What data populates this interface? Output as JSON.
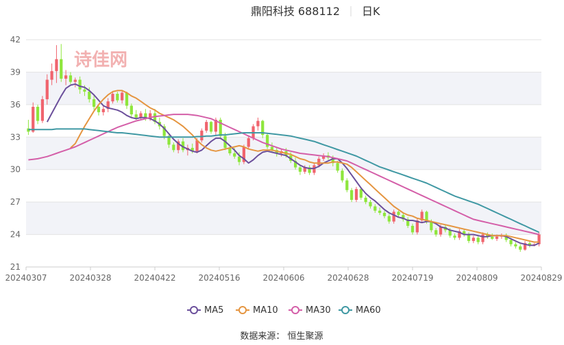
{
  "header": {
    "stock_name": "鼎阳科技 688112",
    "period": "日K"
  },
  "watermark": "诗佳网",
  "source": "数据来源： 恒生聚源",
  "colors": {
    "up": "#f0646e",
    "down": "#8ee63c",
    "ma5": "#6b4f9b",
    "ma10": "#e59540",
    "ma30": "#d45ea8",
    "ma60": "#3f98a3",
    "band": "#f2f3f8",
    "grid": "#e3e3e3",
    "axis_text": "#666666",
    "title_text": "#333333",
    "watermark": "#f2b1b1"
  },
  "chart_data": {
    "type": "candlestick",
    "title": "鼎阳科技 688112 日K",
    "y_ticks": [
      21,
      24,
      27,
      30,
      33,
      36,
      39,
      42
    ],
    "ylim": [
      21,
      42
    ],
    "x_tick_labels": [
      "20240307",
      "20240328",
      "20240422",
      "20240516",
      "20240606",
      "20240628",
      "20240719",
      "20240809",
      "20240829"
    ],
    "legend": [
      "MA5",
      "MA10",
      "MA30",
      "MA60"
    ],
    "legend_position": "bottom-center",
    "grid": true,
    "candles": [
      [
        33.8,
        34.6,
        33.2,
        33.5
      ],
      [
        33.5,
        36.2,
        33.4,
        35.8
      ],
      [
        35.8,
        36.0,
        34.2,
        34.5
      ],
      [
        34.5,
        36.8,
        34.3,
        36.5
      ],
      [
        36.5,
        38.8,
        36.0,
        38.3
      ],
      [
        38.3,
        39.8,
        37.8,
        39.1
      ],
      [
        39.1,
        41.5,
        38.0,
        40.2
      ],
      [
        40.2,
        41.6,
        38.1,
        38.4
      ],
      [
        38.4,
        39.2,
        37.8,
        38.7
      ],
      [
        38.7,
        39.0,
        37.9,
        38.1
      ],
      [
        38.1,
        38.5,
        37.6,
        38.3
      ],
      [
        38.3,
        38.6,
        37.0,
        37.4
      ],
      [
        37.4,
        37.8,
        36.8,
        37.2
      ],
      [
        37.2,
        37.6,
        36.2,
        36.5
      ],
      [
        36.5,
        36.9,
        35.5,
        35.8
      ],
      [
        35.8,
        36.0,
        35.0,
        35.3
      ],
      [
        35.3,
        35.9,
        35.0,
        35.6
      ],
      [
        35.6,
        36.6,
        35.3,
        36.3
      ],
      [
        36.3,
        37.2,
        36.1,
        37.0
      ],
      [
        37.0,
        37.2,
        36.2,
        36.4
      ],
      [
        36.4,
        37.3,
        36.1,
        37.1
      ],
      [
        37.1,
        37.2,
        35.6,
        35.9
      ],
      [
        35.9,
        36.1,
        34.8,
        35.1
      ],
      [
        35.1,
        35.5,
        34.6,
        34.8
      ],
      [
        34.8,
        35.4,
        34.6,
        35.2
      ],
      [
        35.2,
        35.6,
        34.5,
        34.7
      ],
      [
        34.7,
        35.5,
        34.5,
        35.2
      ],
      [
        35.2,
        35.6,
        34.2,
        34.4
      ],
      [
        34.4,
        34.8,
        33.7,
        34.0
      ],
      [
        34.0,
        34.2,
        32.8,
        33.1
      ],
      [
        33.1,
        33.4,
        32.0,
        32.3
      ],
      [
        32.3,
        32.5,
        31.6,
        31.8
      ],
      [
        31.8,
        32.8,
        31.5,
        32.6
      ],
      [
        32.6,
        32.9,
        31.6,
        31.8
      ],
      [
        31.8,
        32.3,
        31.3,
        32.0
      ],
      [
        32.0,
        32.4,
        31.5,
        31.7
      ],
      [
        31.7,
        32.9,
        31.5,
        32.7
      ],
      [
        32.7,
        33.8,
        32.5,
        33.6
      ],
      [
        33.6,
        34.6,
        33.4,
        34.4
      ],
      [
        34.4,
        34.5,
        33.3,
        33.5
      ],
      [
        33.5,
        34.8,
        33.2,
        34.6
      ],
      [
        34.6,
        34.8,
        32.8,
        33.1
      ],
      [
        33.1,
        33.4,
        31.8,
        32.0
      ],
      [
        32.0,
        32.2,
        31.3,
        31.5
      ],
      [
        31.5,
        32.0,
        31.0,
        31.2
      ],
      [
        31.2,
        31.6,
        30.4,
        30.7
      ],
      [
        30.7,
        32.3,
        30.5,
        32.1
      ],
      [
        32.1,
        33.1,
        31.9,
        32.9
      ],
      [
        32.9,
        34.2,
        32.7,
        34.0
      ],
      [
        34.0,
        34.8,
        33.6,
        34.5
      ],
      [
        34.5,
        34.6,
        32.9,
        33.2
      ],
      [
        33.2,
        33.4,
        31.9,
        32.1
      ],
      [
        32.1,
        32.5,
        31.6,
        31.8
      ],
      [
        31.8,
        32.1,
        31.2,
        31.5
      ],
      [
        31.5,
        31.9,
        31.2,
        31.7
      ],
      [
        31.7,
        32.0,
        31.1,
        31.3
      ],
      [
        31.3,
        31.6,
        30.6,
        30.8
      ],
      [
        30.8,
        31.1,
        30.0,
        30.2
      ],
      [
        30.2,
        30.4,
        29.5,
        29.8
      ],
      [
        29.8,
        30.4,
        29.6,
        30.2
      ],
      [
        30.2,
        30.4,
        29.5,
        29.7
      ],
      [
        29.7,
        30.6,
        29.5,
        30.4
      ],
      [
        30.4,
        31.2,
        30.2,
        31.0
      ],
      [
        31.0,
        31.5,
        30.8,
        31.3
      ],
      [
        31.3,
        31.6,
        30.9,
        31.1
      ],
      [
        31.1,
        31.3,
        30.3,
        30.6
      ],
      [
        30.6,
        30.8,
        29.7,
        29.9
      ],
      [
        29.9,
        30.1,
        28.8,
        29.0
      ],
      [
        29.0,
        29.2,
        27.9,
        28.1
      ],
      [
        28.1,
        28.3,
        27.0,
        27.2
      ],
      [
        27.2,
        28.4,
        27.0,
        28.2
      ],
      [
        28.2,
        28.4,
        27.2,
        27.4
      ],
      [
        27.4,
        27.6,
        26.8,
        27.0
      ],
      [
        27.0,
        27.2,
        26.4,
        26.6
      ],
      [
        26.6,
        26.8,
        26.0,
        26.2
      ],
      [
        26.2,
        26.5,
        25.8,
        26.0
      ],
      [
        26.0,
        26.2,
        25.5,
        25.7
      ],
      [
        25.7,
        25.9,
        25.0,
        25.2
      ],
      [
        25.2,
        26.3,
        25.0,
        26.1
      ],
      [
        26.1,
        26.2,
        25.6,
        25.8
      ],
      [
        25.8,
        26.0,
        25.2,
        25.4
      ],
      [
        25.4,
        25.6,
        24.6,
        24.8
      ],
      [
        24.8,
        25.0,
        24.0,
        24.2
      ],
      [
        24.2,
        25.5,
        24.0,
        25.3
      ],
      [
        25.3,
        26.3,
        25.1,
        26.1
      ],
      [
        26.1,
        26.2,
        25.0,
        25.2
      ],
      [
        25.2,
        25.4,
        24.2,
        24.4
      ],
      [
        24.4,
        24.6,
        23.8,
        24.0
      ],
      [
        24.0,
        24.9,
        23.8,
        24.7
      ],
      [
        24.7,
        24.9,
        24.2,
        24.4
      ],
      [
        24.4,
        24.6,
        23.7,
        23.9
      ],
      [
        23.9,
        24.1,
        23.5,
        23.7
      ],
      [
        23.7,
        24.5,
        23.5,
        24.3
      ],
      [
        24.3,
        24.5,
        23.8,
        24.0
      ],
      [
        24.0,
        24.2,
        23.2,
        23.4
      ],
      [
        23.4,
        23.9,
        23.2,
        23.7
      ],
      [
        23.7,
        23.9,
        23.1,
        23.3
      ],
      [
        23.3,
        24.2,
        23.1,
        24.0
      ],
      [
        24.0,
        24.2,
        23.6,
        23.8
      ],
      [
        23.8,
        24.1,
        23.5,
        23.6
      ],
      [
        23.6,
        24.0,
        23.4,
        23.8
      ],
      [
        23.8,
        24.1,
        23.6,
        23.9
      ],
      [
        23.9,
        24.1,
        23.3,
        23.5
      ],
      [
        23.5,
        23.7,
        22.9,
        23.1
      ],
      [
        23.1,
        23.3,
        22.7,
        22.9
      ],
      [
        22.9,
        23.1,
        22.4,
        22.6
      ],
      [
        22.6,
        23.4,
        22.5,
        23.2
      ],
      [
        23.2,
        23.4,
        22.8,
        23.0
      ],
      [
        23.0,
        23.2,
        22.9,
        23.1
      ],
      [
        23.1,
        24.2,
        22.9,
        24.0
      ]
    ],
    "series": [
      {
        "name": "MA5",
        "values": [
          null,
          null,
          null,
          null,
          34.4,
          35.2,
          36.0,
          36.8,
          37.5,
          37.8,
          37.9,
          37.7,
          37.6,
          37.3,
          36.9,
          36.4,
          35.9,
          35.7,
          35.6,
          35.5,
          35.3,
          35.0,
          34.8,
          34.7,
          34.8,
          34.8,
          34.7,
          34.5,
          34.2,
          33.8,
          33.3,
          32.8,
          32.4,
          32.1,
          31.9,
          31.7,
          31.6,
          31.8,
          32.2,
          32.6,
          32.9,
          32.9,
          32.6,
          32.2,
          31.8,
          31.3,
          31.0,
          30.6,
          30.9,
          31.3,
          31.6,
          31.7,
          31.6,
          31.5,
          31.4,
          31.3,
          31.0,
          30.7,
          30.4,
          30.2,
          30.1,
          30.1,
          30.3,
          30.6,
          30.8,
          31.0,
          31.0,
          30.6,
          30.1,
          29.5,
          28.9,
          28.3,
          27.8,
          27.4,
          27.1,
          26.7,
          26.3,
          26.0,
          25.8,
          25.6,
          25.5,
          25.3,
          25.3,
          25.2,
          25.1,
          25.2,
          25.2,
          25.0,
          24.7,
          24.6,
          24.4,
          24.3,
          24.2,
          24.0,
          24.0,
          24.0,
          23.9,
          23.8,
          23.8,
          23.9,
          23.9,
          23.9,
          23.8,
          23.6,
          23.4,
          23.2,
          23.1,
          23.0,
          23.0,
          23.2
        ]
      },
      {
        "name": "MA10",
        "values": [
          null,
          null,
          null,
          null,
          null,
          null,
          null,
          null,
          null,
          32.0,
          32.4,
          33.2,
          34.0,
          34.7,
          35.4,
          36.0,
          36.5,
          36.9,
          37.2,
          37.3,
          37.3,
          37.1,
          36.8,
          36.6,
          36.3,
          36.0,
          35.7,
          35.5,
          35.2,
          35.0,
          34.8,
          34.6,
          34.3,
          34.0,
          33.6,
          33.2,
          32.7,
          32.3,
          32.0,
          31.8,
          31.7,
          31.8,
          31.9,
          32.0,
          32.1,
          32.2,
          32.1,
          31.9,
          31.8,
          31.7,
          31.8,
          31.8,
          31.8,
          31.7,
          31.6,
          31.5,
          31.4,
          31.2,
          31.0,
          30.9,
          30.7,
          30.6,
          30.6,
          30.6,
          30.6,
          30.7,
          30.7,
          30.6,
          30.5,
          30.2,
          29.8,
          29.4,
          29.0,
          28.6,
          28.2,
          27.8,
          27.4,
          27.0,
          26.6,
          26.3,
          26.0,
          25.8,
          25.7,
          25.5,
          25.4,
          25.3,
          25.2,
          25.1,
          25.0,
          24.9,
          24.8,
          24.7,
          24.6,
          24.5,
          24.4,
          24.3,
          24.2,
          24.1,
          24.0,
          23.9,
          23.9,
          23.9,
          23.9,
          23.8,
          23.7,
          23.6,
          23.5,
          23.4,
          23.3,
          23.3
        ]
      },
      {
        "name": "MA30",
        "values": [
          30.9,
          30.95,
          31.0,
          31.1,
          31.2,
          31.35,
          31.5,
          31.65,
          31.8,
          31.95,
          32.1,
          32.3,
          32.5,
          32.7,
          32.9,
          33.1,
          33.3,
          33.5,
          33.7,
          33.9,
          34.05,
          34.2,
          34.35,
          34.5,
          34.6,
          34.7,
          34.8,
          34.9,
          34.95,
          35.0,
          35.05,
          35.1,
          35.1,
          35.1,
          35.1,
          35.05,
          35.0,
          34.9,
          34.8,
          34.7,
          34.5,
          34.3,
          34.1,
          33.9,
          33.7,
          33.5,
          33.3,
          33.1,
          32.9,
          32.7,
          32.5,
          32.35,
          32.2,
          32.05,
          31.9,
          31.8,
          31.7,
          31.6,
          31.5,
          31.45,
          31.4,
          31.35,
          31.3,
          31.25,
          31.2,
          31.1,
          31.0,
          30.9,
          30.8,
          30.6,
          30.4,
          30.2,
          30.0,
          29.8,
          29.6,
          29.4,
          29.2,
          29.0,
          28.8,
          28.6,
          28.4,
          28.2,
          28.0,
          27.8,
          27.6,
          27.4,
          27.2,
          27.0,
          26.8,
          26.6,
          26.4,
          26.2,
          26.0,
          25.8,
          25.6,
          25.4,
          25.3,
          25.2,
          25.1,
          25.0,
          24.9,
          24.8,
          24.7,
          24.6,
          24.5,
          24.4,
          24.3,
          24.2,
          24.1,
          24.0
        ]
      },
      {
        "name": "MA60",
        "values": [
          33.7,
          33.7,
          33.7,
          33.7,
          33.7,
          33.7,
          33.75,
          33.75,
          33.75,
          33.75,
          33.75,
          33.75,
          33.75,
          33.7,
          33.65,
          33.6,
          33.55,
          33.5,
          33.45,
          33.4,
          33.4,
          33.35,
          33.3,
          33.25,
          33.2,
          33.15,
          33.1,
          33.05,
          33.0,
          33.0,
          33.0,
          33.0,
          33.0,
          33.0,
          33.0,
          33.0,
          33.05,
          33.05,
          33.1,
          33.1,
          33.15,
          33.2,
          33.2,
          33.25,
          33.3,
          33.35,
          33.4,
          33.4,
          33.4,
          33.4,
          33.4,
          33.35,
          33.3,
          33.25,
          33.2,
          33.15,
          33.1,
          33.0,
          32.9,
          32.8,
          32.7,
          32.6,
          32.45,
          32.3,
          32.15,
          32.0,
          31.85,
          31.7,
          31.55,
          31.4,
          31.25,
          31.05,
          30.85,
          30.65,
          30.45,
          30.25,
          30.1,
          29.95,
          29.8,
          29.65,
          29.5,
          29.35,
          29.2,
          29.05,
          28.9,
          28.75,
          28.55,
          28.35,
          28.15,
          27.95,
          27.75,
          27.55,
          27.4,
          27.25,
          27.1,
          26.95,
          26.8,
          26.6,
          26.4,
          26.2,
          26.0,
          25.8,
          25.6,
          25.4,
          25.2,
          25.0,
          24.8,
          24.6,
          24.4,
          24.2
        ]
      }
    ]
  }
}
